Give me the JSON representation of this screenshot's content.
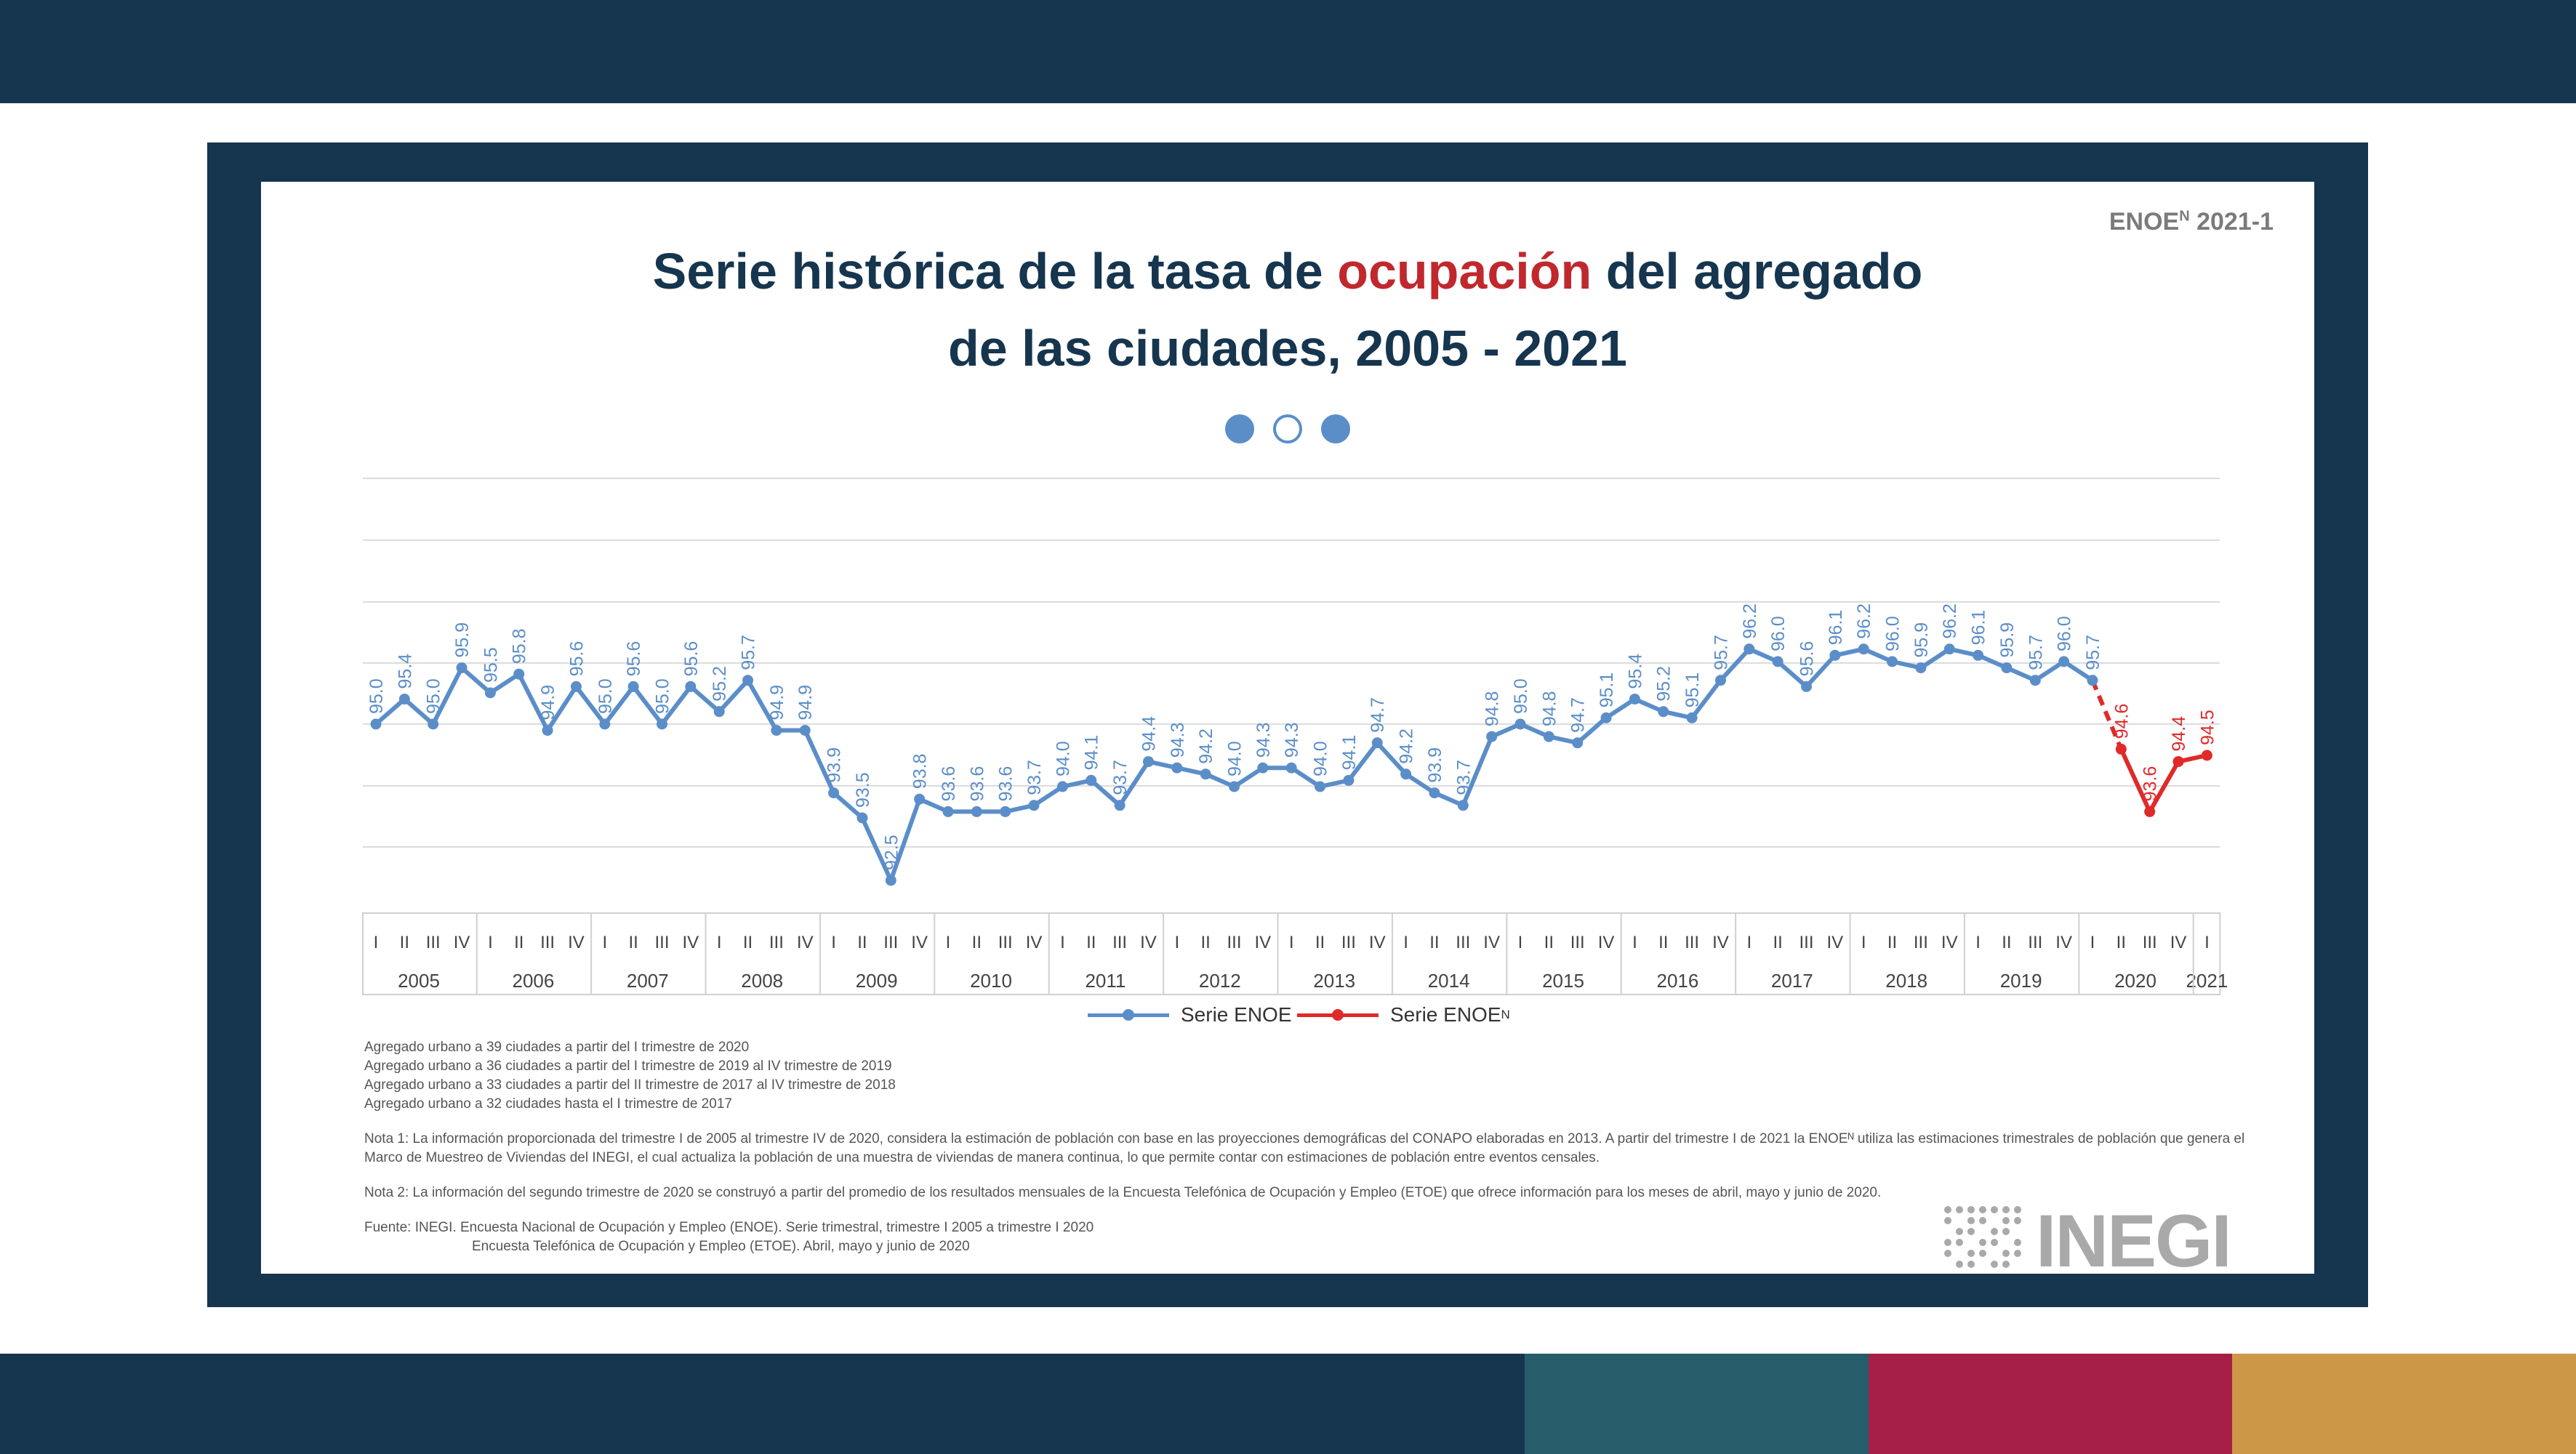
{
  "colors": {
    "navy": "#16354e",
    "teal": "#275c6b",
    "crimson": "#a61f48",
    "gold": "#cc9847",
    "enoe": "#5b8ec9",
    "enoe_n": "#e02a2a",
    "title_accent": "#c0282d"
  },
  "badge": {
    "text": "ENOE",
    "sup": "N",
    "suffix": " 2021-1"
  },
  "title": {
    "line1_pre": "Serie histórica de la tasa de ",
    "line1_accent": "ocupación",
    "line1_post": " del agregado",
    "line2": "de las ciudades, 2005 - 2021"
  },
  "carousel": {
    "dots": [
      "filled",
      "empty",
      "filled"
    ]
  },
  "chart_data": {
    "type": "line",
    "ylim": [
      90.5,
      96.5
    ],
    "grid": true,
    "quarters": [
      "I",
      "II",
      "III",
      "IV",
      "I",
      "II",
      "III",
      "IV",
      "I",
      "II",
      "III",
      "IV",
      "I",
      "II",
      "III",
      "IV",
      "I",
      "II",
      "III",
      "IV",
      "I",
      "II",
      "III",
      "IV",
      "I",
      "II",
      "III",
      "IV",
      "I",
      "II",
      "III",
      "IV",
      "I",
      "II",
      "III",
      "IV",
      "I",
      "II",
      "III",
      "IV",
      "I",
      "II",
      "III",
      "IV",
      "I",
      "II",
      "III",
      "IV",
      "I",
      "II",
      "III",
      "IV",
      "I",
      "II",
      "III",
      "IV",
      "I",
      "II",
      "III",
      "IV",
      "I",
      "II",
      "III",
      "IV",
      "I"
    ],
    "years": [
      "2005",
      "2006",
      "2007",
      "2008",
      "2009",
      "2010",
      "2011",
      "2012",
      "2013",
      "2014",
      "2015",
      "2016",
      "2017",
      "2018",
      "2019",
      "2020",
      "2021"
    ],
    "series": [
      {
        "name": "Serie ENOE",
        "start_index": 0,
        "values": [
          95.0,
          95.4,
          95.0,
          95.9,
          95.5,
          95.8,
          94.9,
          95.6,
          95.0,
          95.6,
          95.0,
          95.6,
          95.2,
          95.7,
          94.9,
          94.9,
          93.9,
          93.5,
          92.5,
          93.8,
          93.6,
          93.6,
          93.6,
          93.7,
          94.0,
          94.1,
          93.7,
          94.4,
          94.3,
          94.2,
          94.0,
          94.3,
          94.3,
          94.0,
          94.1,
          94.7,
          94.2,
          93.9,
          93.7,
          94.8,
          95.0,
          94.8,
          94.7,
          95.1,
          95.4,
          95.2,
          95.1,
          95.7,
          96.2,
          96.0,
          95.6,
          96.1,
          96.2,
          96.0,
          95.9,
          96.2,
          96.1,
          95.9,
          95.7,
          96.0,
          95.7
        ]
      },
      {
        "name": "Serie ENOEN",
        "start_index": 61,
        "values": [
          94.6,
          93.6,
          94.4,
          94.5
        ]
      }
    ],
    "legend": [
      {
        "label": "Serie ENOE",
        "sup": ""
      },
      {
        "label": "Serie ENOE",
        "sup": "N"
      }
    ]
  },
  "notes": {
    "agregado": [
      "Agregado urbano a 39 ciudades a partir del I trimestre de 2020",
      "Agregado urbano a 36 ciudades a partir del I trimestre de 2019 al IV trimestre de 2019",
      "Agregado urbano a 33 ciudades a partir del II trimestre de 2017 al IV trimestre de 2018",
      "Agregado urbano a 32 ciudades hasta el I trimestre de 2017"
    ],
    "nota1": "Nota 1: La información proporcionada del trimestre I de 2005 al trimestre IV de 2020, considera la estimación de población con base en las proyecciones demográficas del CONAPO elaboradas en 2013. A partir del trimestre I de 2021 la ENOEᴺ utiliza las estimaciones trimestrales de población que genera el Marco de Muestreo de Viviendas del INEGI, el cual actualiza la población de una muestra de viviendas de manera continua, lo que permite contar con estimaciones de población entre eventos censales.",
    "nota2": "Nota 2: La información del segundo trimestre de 2020 se construyó a partir del promedio de los resultados mensuales de la Encuesta Telefónica de Ocupación y Empleo (ETOE) que ofrece información para los meses de abril, mayo y junio de 2020.",
    "fuente1": "Fuente: INEGI. Encuesta Nacional de Ocupación y Empleo (ENOE). Serie trimestral, trimestre I 2005 a trimestre I 2020",
    "fuente2": "Encuesta Telefónica de Ocupación y Empleo (ETOE). Abril, mayo y junio de 2020"
  },
  "logo": {
    "text": "INEGI"
  }
}
